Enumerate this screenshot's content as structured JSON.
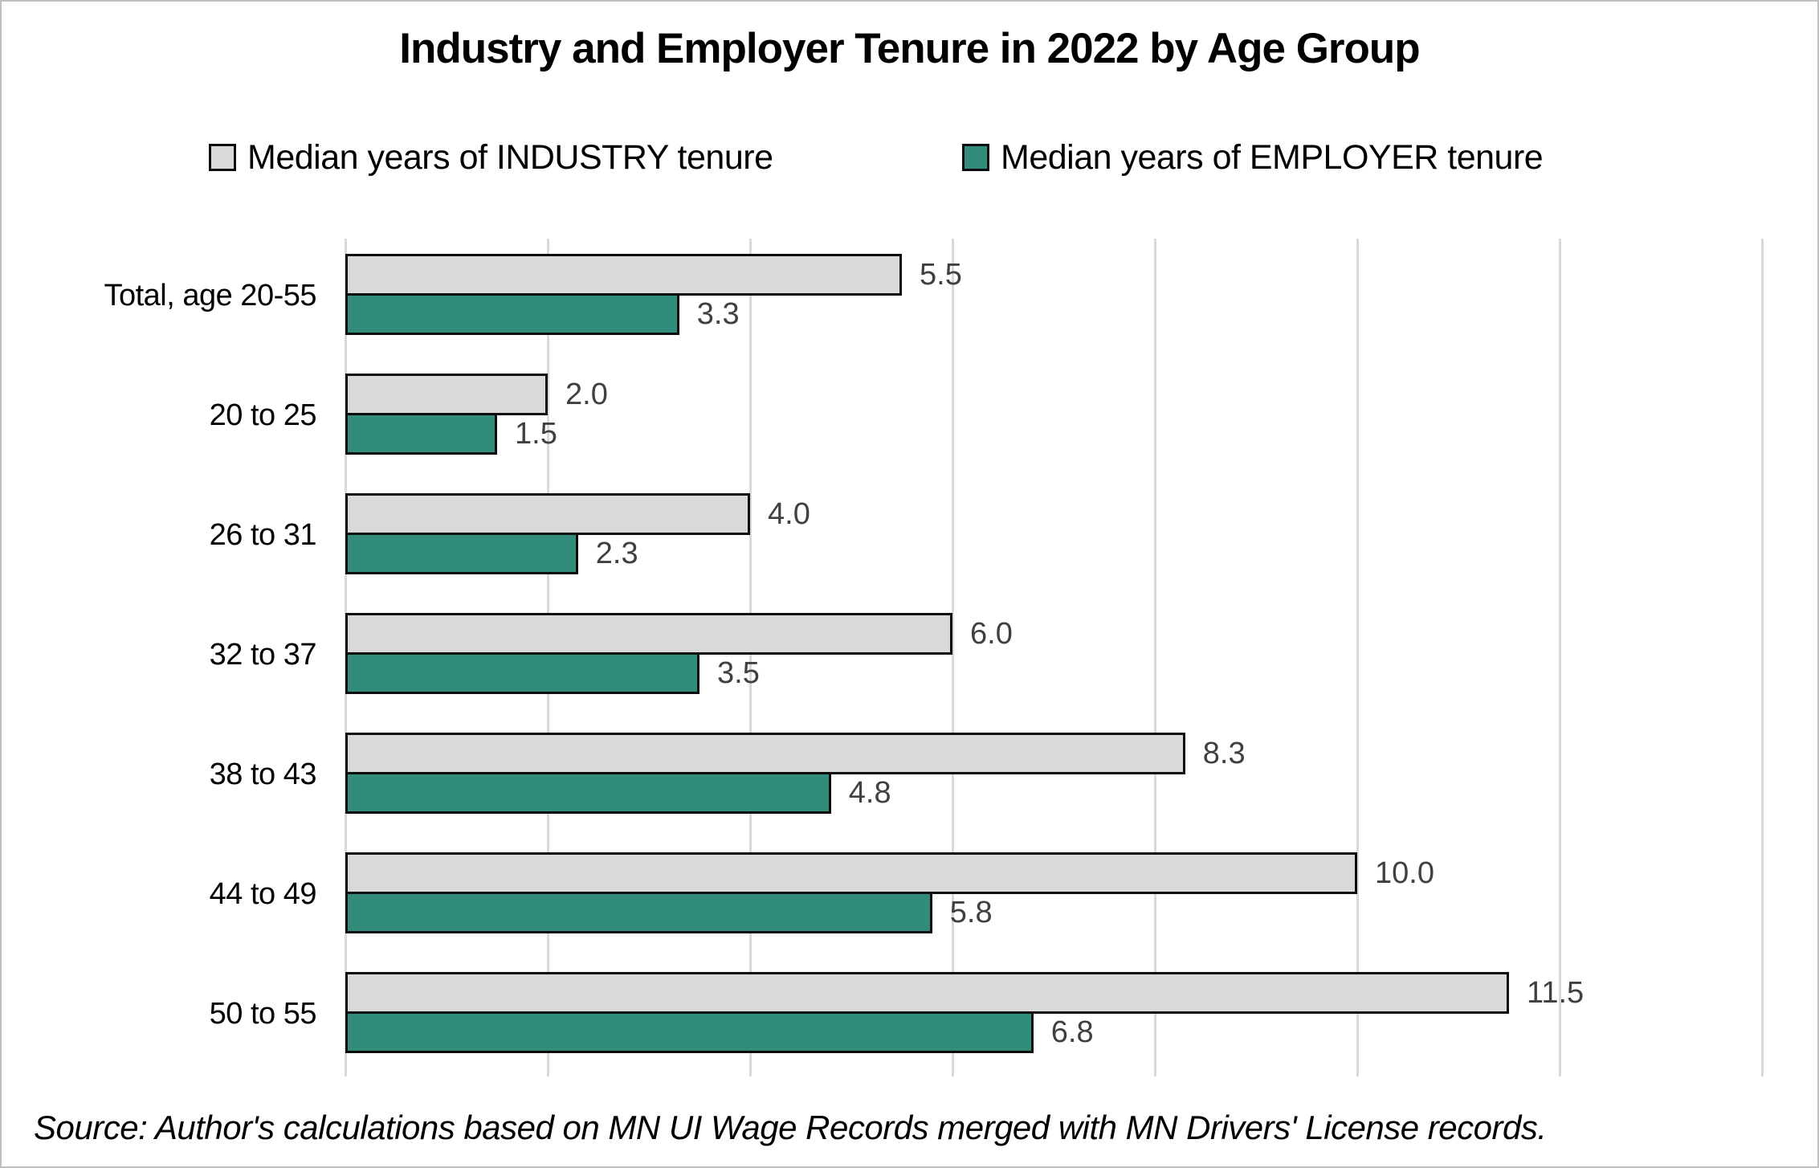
{
  "title": "Industry and Employer Tenure in 2022 by Age Group",
  "legend": [
    {
      "label": "Median years of INDUSTRY tenure",
      "color": "#d9d9d9"
    },
    {
      "label": "Median years of EMPLOYER tenure",
      "color": "#318c7c"
    }
  ],
  "source_note": "Source: Author's calculations based on MN UI Wage Records merged with MN Drivers' License records.",
  "colors": {
    "industry_fill": "#d9d9d9",
    "employer_fill": "#318c7c",
    "bar_border": "#0d0d0d",
    "gridline": "#d9d9d9",
    "value_label": "#404040",
    "figure_border": "#bfbfbf"
  },
  "chart_data": {
    "type": "bar",
    "orientation": "horizontal",
    "title": "Industry and Employer Tenure in 2022 by Age Group",
    "categories": [
      "Total, age 20-55",
      "20 to 25",
      "26 to 31",
      "32 to 37",
      "38 to 43",
      "44 to 49",
      "50 to 55"
    ],
    "series": [
      {
        "name": "Median years of INDUSTRY tenure",
        "color": "#d9d9d9",
        "values": [
          5.5,
          2.0,
          4.0,
          6.0,
          8.3,
          10.0,
          11.5
        ]
      },
      {
        "name": "Median years of EMPLOYER tenure",
        "color": "#318c7c",
        "values": [
          3.3,
          1.5,
          2.3,
          3.5,
          4.8,
          5.8,
          6.8
        ]
      }
    ],
    "xlim": [
      0,
      14
    ],
    "gridline_step": 2,
    "grid": true,
    "legend_position": "top",
    "value_labels": true,
    "value_label_decimals": 1,
    "xlabel": "",
    "ylabel": ""
  }
}
